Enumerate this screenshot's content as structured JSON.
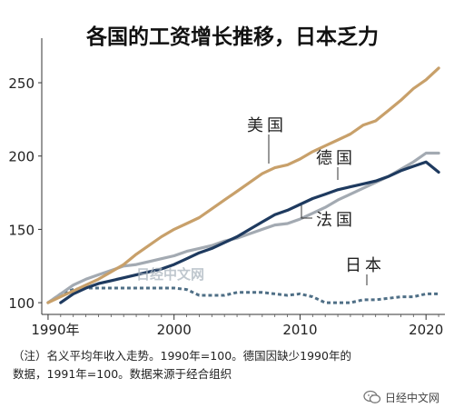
{
  "chart_data": {
    "type": "line",
    "title": "各国的工资增长推移，日本乏力",
    "xlabel": "",
    "ylabel": "",
    "xlim": [
      1989.5,
      2021.5
    ],
    "ylim": [
      92,
      268
    ],
    "x_ticks": [
      1990,
      2000,
      2010,
      2020
    ],
    "x_tick_labels": [
      "1990年",
      "2000",
      "2010",
      "2020"
    ],
    "y_ticks": [
      100,
      150,
      200,
      250
    ],
    "y_tick_labels": [
      "100",
      "150",
      "200",
      "250"
    ],
    "grid": false,
    "legend": "inline labels",
    "series": [
      {
        "name": "美国",
        "color": "#c8a06a",
        "points": [
          [
            1990,
            100
          ],
          [
            1991,
            104
          ],
          [
            1992,
            108
          ],
          [
            1993,
            112
          ],
          [
            1994,
            116
          ],
          [
            1995,
            121
          ],
          [
            1996,
            126
          ],
          [
            1997,
            133
          ],
          [
            1998,
            139
          ],
          [
            1999,
            145
          ],
          [
            2000,
            150
          ],
          [
            2001,
            154
          ],
          [
            2002,
            158
          ],
          [
            2003,
            164
          ],
          [
            2004,
            170
          ],
          [
            2005,
            176
          ],
          [
            2006,
            182
          ],
          [
            2007,
            188
          ],
          [
            2008,
            192
          ],
          [
            2009,
            194
          ],
          [
            2010,
            198
          ],
          [
            2011,
            203
          ],
          [
            2012,
            207
          ],
          [
            2013,
            211
          ],
          [
            2014,
            215
          ],
          [
            2015,
            221
          ],
          [
            2016,
            224
          ],
          [
            2017,
            231
          ],
          [
            2018,
            238
          ],
          [
            2019,
            246
          ],
          [
            2020,
            252
          ],
          [
            2021,
            260
          ]
        ]
      },
      {
        "name": "德国",
        "color": "#1e3a5f",
        "points": [
          [
            1991,
            100
          ],
          [
            1992,
            106
          ],
          [
            1993,
            110
          ],
          [
            1994,
            113
          ],
          [
            1995,
            115
          ],
          [
            1996,
            117
          ],
          [
            1997,
            119
          ],
          [
            1998,
            121
          ],
          [
            1999,
            123
          ],
          [
            2000,
            126
          ],
          [
            2001,
            130
          ],
          [
            2002,
            134
          ],
          [
            2003,
            137
          ],
          [
            2004,
            141
          ],
          [
            2005,
            145
          ],
          [
            2006,
            150
          ],
          [
            2007,
            155
          ],
          [
            2008,
            160
          ],
          [
            2009,
            163
          ],
          [
            2010,
            167
          ],
          [
            2011,
            171
          ],
          [
            2012,
            174
          ],
          [
            2013,
            177
          ],
          [
            2014,
            179
          ],
          [
            2015,
            181
          ],
          [
            2016,
            183
          ],
          [
            2017,
            186
          ],
          [
            2018,
            190
          ],
          [
            2019,
            193
          ],
          [
            2020,
            196
          ],
          [
            2021,
            189
          ]
        ]
      },
      {
        "name": "法国",
        "color": "#a3aab2",
        "points": [
          [
            1990,
            100
          ],
          [
            1991,
            106
          ],
          [
            1992,
            112
          ],
          [
            1993,
            116
          ],
          [
            1994,
            119
          ],
          [
            1995,
            122
          ],
          [
            1996,
            125
          ],
          [
            1997,
            126
          ],
          [
            1998,
            128
          ],
          [
            1999,
            130
          ],
          [
            2000,
            132
          ],
          [
            2001,
            135
          ],
          [
            2002,
            137
          ],
          [
            2003,
            139
          ],
          [
            2004,
            142
          ],
          [
            2005,
            144
          ],
          [
            2006,
            147
          ],
          [
            2007,
            150
          ],
          [
            2008,
            153
          ],
          [
            2009,
            154
          ],
          [
            2010,
            157
          ],
          [
            2011,
            161
          ],
          [
            2012,
            165
          ],
          [
            2013,
            170
          ],
          [
            2014,
            174
          ],
          [
            2015,
            178
          ],
          [
            2016,
            182
          ],
          [
            2017,
            186
          ],
          [
            2018,
            191
          ],
          [
            2019,
            196
          ],
          [
            2020,
            202
          ],
          [
            2021,
            202
          ]
        ]
      },
      {
        "name": "日本",
        "color": "#4f6f86",
        "dashed": true,
        "points": [
          [
            1990,
            100
          ],
          [
            1991,
            106
          ],
          [
            1992,
            109
          ],
          [
            1993,
            110
          ],
          [
            1994,
            110
          ],
          [
            1995,
            110
          ],
          [
            1996,
            110
          ],
          [
            1997,
            110
          ],
          [
            1998,
            110
          ],
          [
            1999,
            110
          ],
          [
            2000,
            110
          ],
          [
            2001,
            109
          ],
          [
            2002,
            105
          ],
          [
            2003,
            105
          ],
          [
            2004,
            105
          ],
          [
            2005,
            107
          ],
          [
            2006,
            107
          ],
          [
            2007,
            107
          ],
          [
            2008,
            106
          ],
          [
            2009,
            105
          ],
          [
            2010,
            106
          ],
          [
            2011,
            104
          ],
          [
            2012,
            100
          ],
          [
            2013,
            100
          ],
          [
            2014,
            100
          ],
          [
            2015,
            102
          ],
          [
            2016,
            102
          ],
          [
            2017,
            103
          ],
          [
            2018,
            104
          ],
          [
            2019,
            104
          ],
          [
            2020,
            106
          ],
          [
            2021,
            106
          ]
        ]
      }
    ]
  },
  "notes": [
    "（注）名义平均年收入走势。1990年=100。德国因缺少1990年的",
    "数据，1991年=100。数据来源于经合组织"
  ],
  "watermark": {
    "center_text": "日经中文网",
    "logo_text": "日经中文网",
    "logo_icon": "wechat-icon"
  }
}
